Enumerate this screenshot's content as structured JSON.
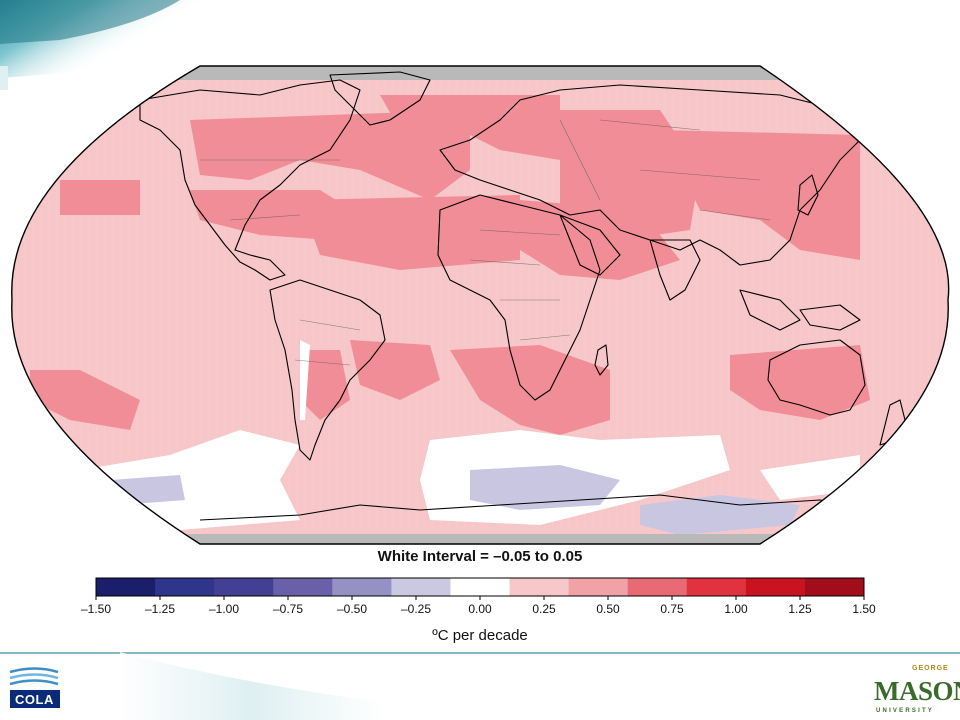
{
  "map": {
    "projection": "Robinson",
    "variable": "temperature trend",
    "ocean_fill": "#f6c6c8",
    "warm_fill": "#f08d96",
    "cool_fill": "#c9c6e2",
    "neutral_fill": "#ffffff",
    "polar_cap_fill": "#b9b9b9",
    "coastline_color": "#000000"
  },
  "white_interval_label": "White Interval = –0.05 to 0.05",
  "colorbar": {
    "colors": [
      "#1b1f6b",
      "#2e358a",
      "#423f95",
      "#6a5fa9",
      "#9591c4",
      "#cbc9e2",
      "#ffffff",
      "#f8c7c9",
      "#f1a2a7",
      "#e86a74",
      "#e1333f",
      "#c9141f",
      "#a10d1b"
    ],
    "tick_labels": [
      "–1.50",
      "–1.25",
      "–1.00",
      "–0.75",
      "–0.50",
      "–0.25",
      "0.00",
      "0.25",
      "0.50",
      "0.75",
      "1.00",
      "1.25",
      "1.50"
    ],
    "unit_label": "ºC per decade"
  },
  "logos": {
    "left": "COLA",
    "right_word": "MASON",
    "right_top": "GEORGE",
    "right_bottom": "UNIVERSITY"
  }
}
